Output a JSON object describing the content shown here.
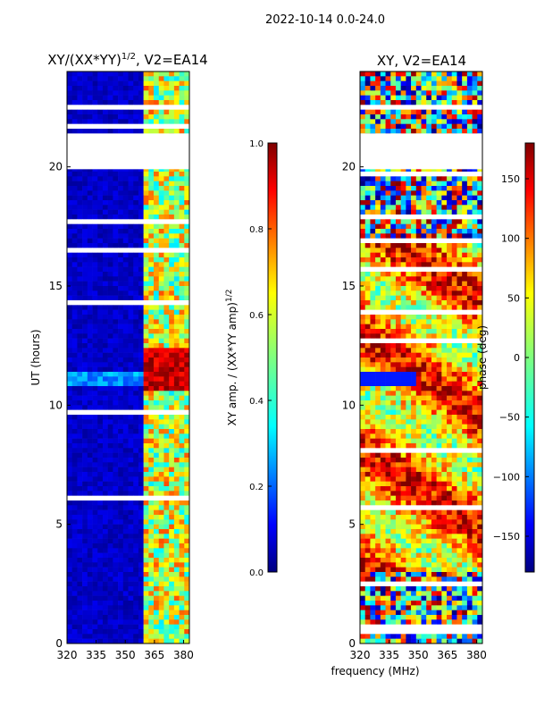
{
  "suptitle": "2022-10-14 0.0-24.0",
  "colors": {
    "background": "#ffffff",
    "axis": "#000000",
    "flagged": "#ffffff",
    "cmap_stops": [
      "#00007f",
      "#0000ff",
      "#007fff",
      "#00ffff",
      "#7fff7f",
      "#ffff00",
      "#ff7f00",
      "#ff0000",
      "#7f0000"
    ]
  },
  "chart_data": [
    {
      "type": "heatmap",
      "title_base": "XY/(XX*YY)",
      "title_exp": "1/2",
      "title_tail": ", V2=EA14",
      "ylabel": "UT (hours)",
      "xlim": [
        320,
        383
      ],
      "ylim": [
        0,
        24
      ],
      "xticks": [
        320,
        335,
        350,
        365,
        380
      ],
      "yticks": [
        0,
        5,
        10,
        15,
        20
      ],
      "gap_hours": [
        21.4,
        19.9
      ],
      "description_hint": "normalized XY amplitude vs frequency and UT",
      "colorbar": {
        "label_base": "XY amp. / (XX*YY amp)",
        "label_exp": "1/2",
        "range": [
          0.0,
          1.0
        ],
        "ticks": [
          "0.0",
          "0.2",
          "0.4",
          "0.6",
          "0.8",
          "1.0"
        ],
        "tick_values": [
          0.0,
          0.2,
          0.4,
          0.6,
          0.8,
          1.0
        ]
      }
    },
    {
      "type": "heatmap",
      "title": "XY, V2=EA14",
      "ylabel": "phase (deg)",
      "xlim": [
        320,
        383
      ],
      "ylim": [
        0,
        24
      ],
      "xticks": [
        320,
        335,
        350,
        365,
        380
      ],
      "yticks": [
        0,
        5,
        10,
        15,
        20
      ],
      "gap_hours": [
        21.4,
        19.9
      ],
      "colorbar": {
        "range": [
          -180,
          180
        ],
        "ticks": [
          "150",
          "100",
          "50",
          "0",
          "−50",
          "−100",
          "−150"
        ],
        "tick_values": [
          150,
          100,
          50,
          0,
          -50,
          -100,
          -150
        ]
      }
    }
  ],
  "xlabel_shared": "frequency (MHz)"
}
